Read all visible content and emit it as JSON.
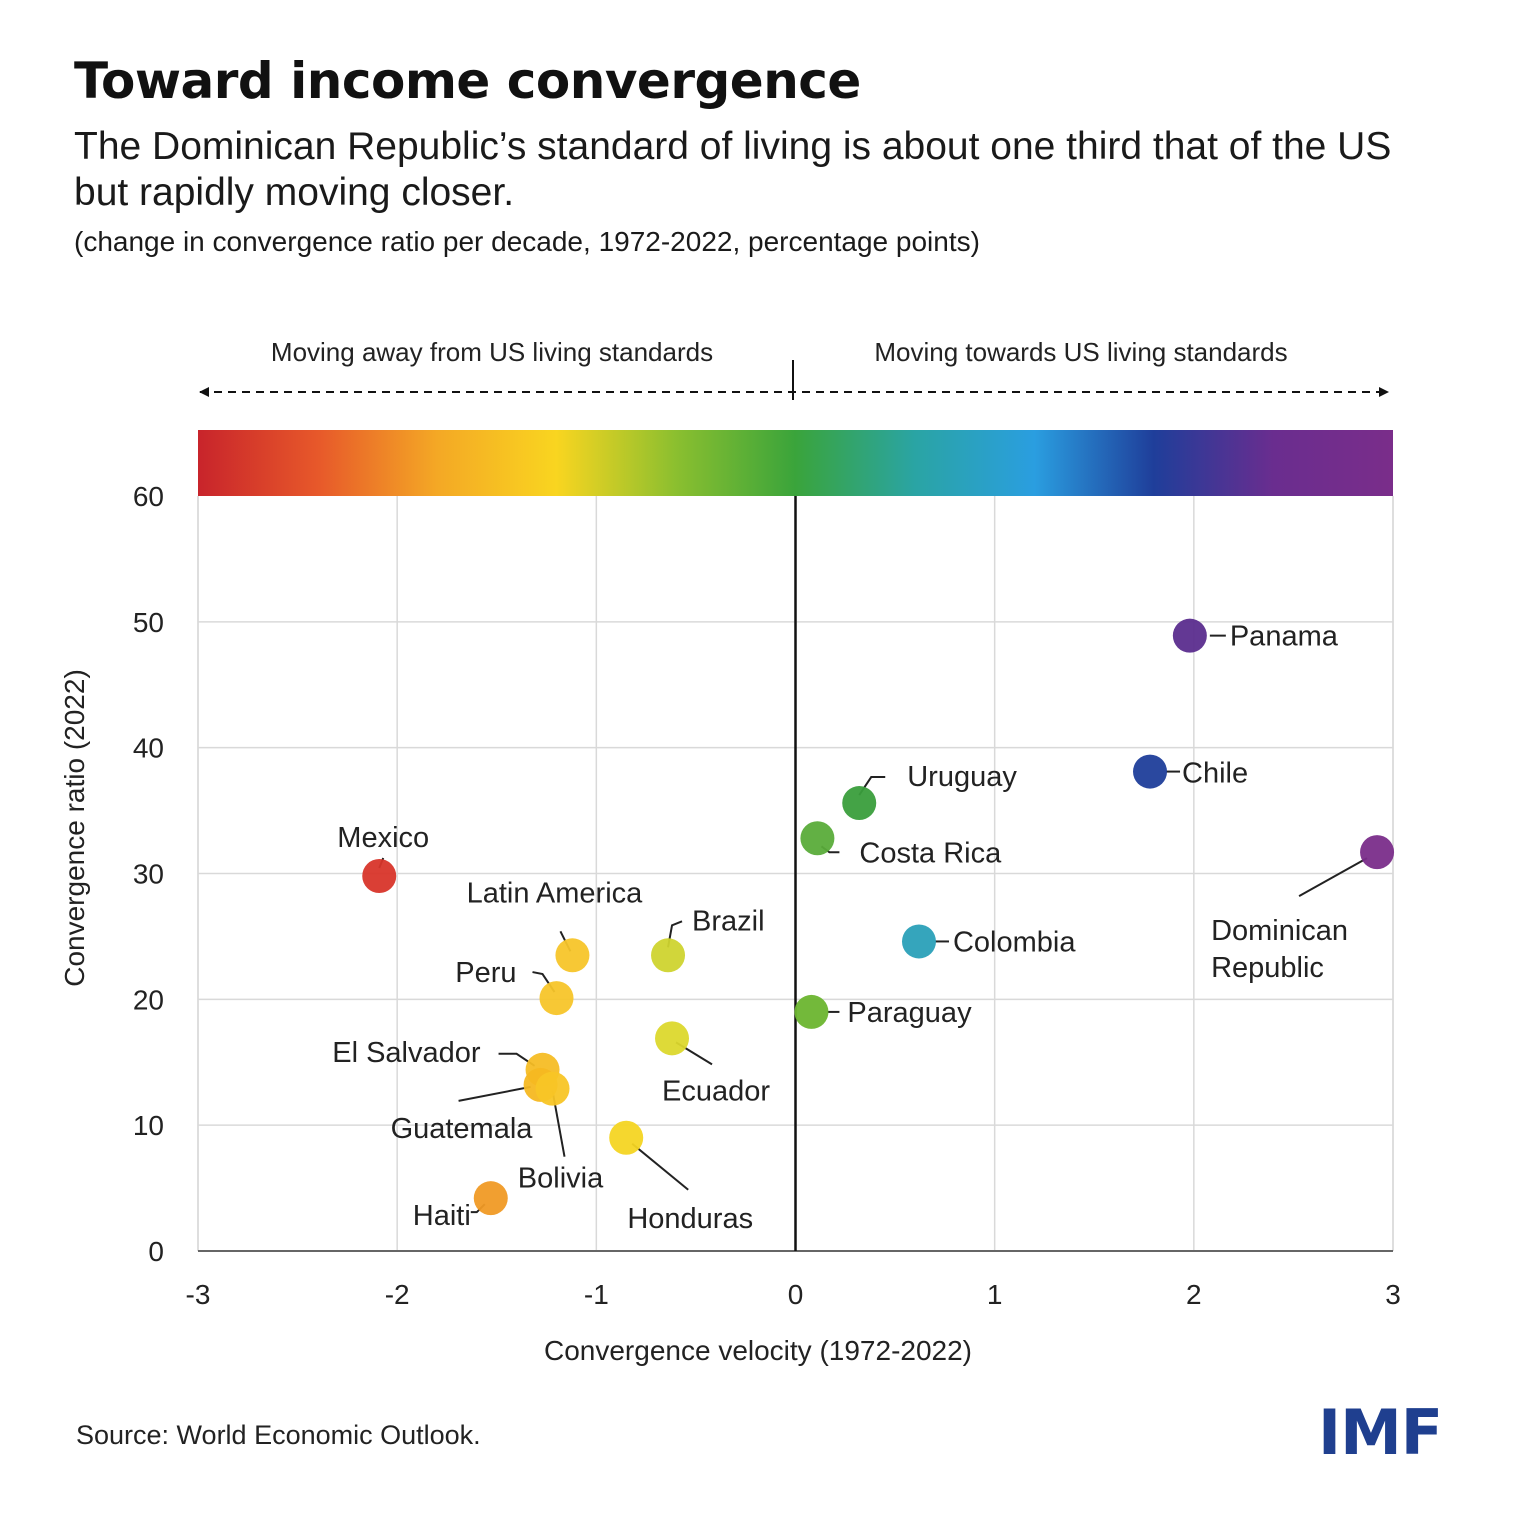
{
  "title": "Toward income convergence",
  "subtitle": "The Dominican Republic’s standard of living is about one third that of the US but rapidly moving closer.",
  "note": "(change in convergence ratio per decade, 1972-2022, percentage points)",
  "source": "Source: World Economic Outlook.",
  "logo": "IMF",
  "colors": {
    "logo": "#1f3f8f",
    "axis": "#111111",
    "grid": "#d9d9d9"
  },
  "chart_data": {
    "type": "scatter",
    "xlabel": "Convergence velocity (1972-2022)",
    "ylabel": "Convergence ratio (2022)",
    "xlim": [
      -3,
      3
    ],
    "ylim": [
      0,
      60
    ],
    "x_ticks": [
      "-3",
      "-2",
      "-1",
      "0",
      "1",
      "2",
      "3"
    ],
    "y_ticks": [
      "0",
      "10",
      "20",
      "30",
      "40",
      "50",
      "60"
    ],
    "grid": true,
    "direction_labels": {
      "left": "Moving away from US living standards",
      "right": "Moving towards US living standards"
    },
    "color_scale": [
      "#c8242b",
      "#e7582a",
      "#f4a825",
      "#f9d520",
      "#8bbf2f",
      "#3aa43b",
      "#2aa4a4",
      "#2a9ee0",
      "#1f3e9a",
      "#6a2d8f",
      "#7a2d8a"
    ],
    "points": [
      {
        "name": "Panama",
        "x": 1.98,
        "y": 48.9,
        "color": "#5b2d8e"
      },
      {
        "name": "Chile",
        "x": 1.78,
        "y": 38.1,
        "color": "#1f3e9a"
      },
      {
        "name": "Dominican Republic",
        "x": 2.92,
        "y": 31.7,
        "color": "#7a2d8a"
      },
      {
        "name": "Uruguay",
        "x": 0.32,
        "y": 35.6,
        "color": "#3a9e3c"
      },
      {
        "name": "Costa Rica",
        "x": 0.11,
        "y": 32.8,
        "color": "#5aac3a"
      },
      {
        "name": "Colombia",
        "x": 0.62,
        "y": 24.6,
        "color": "#2aa0b8"
      },
      {
        "name": "Paraguay",
        "x": 0.08,
        "y": 19.0,
        "color": "#6cb52f"
      },
      {
        "name": "Mexico",
        "x": -2.09,
        "y": 29.8,
        "color": "#d8352a"
      },
      {
        "name": "Latin America",
        "x": -1.12,
        "y": 23.5,
        "color": "#f7c52a"
      },
      {
        "name": "Brazil",
        "x": -0.64,
        "y": 23.5,
        "color": "#cfd42f"
      },
      {
        "name": "Peru",
        "x": -1.2,
        "y": 20.1,
        "color": "#f7c52a"
      },
      {
        "name": "Ecuador",
        "x": -0.62,
        "y": 16.9,
        "color": "#dcd82d"
      },
      {
        "name": "El Salvador",
        "x": -1.27,
        "y": 14.4,
        "color": "#f6bd25"
      },
      {
        "name": "Guatemala",
        "x": -1.28,
        "y": 13.2,
        "color": "#f6b821"
      },
      {
        "name": "Bolivia",
        "x": -1.22,
        "y": 12.9,
        "color": "#f8c526"
      },
      {
        "name": "Honduras",
        "x": -0.85,
        "y": 9.0,
        "color": "#f4d523"
      },
      {
        "name": "Haiti",
        "x": -1.53,
        "y": 4.2,
        "color": "#f09a25"
      }
    ]
  }
}
